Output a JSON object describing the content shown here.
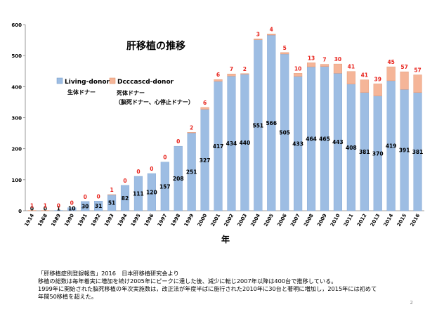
{
  "chart_data": {
    "type": "bar",
    "stacked": true,
    "title": "肝移植の推移",
    "xlabel": "年",
    "ylabel": "",
    "ylim": [
      0,
      600
    ],
    "yticks": [
      0,
      100,
      200,
      300,
      400,
      500,
      600
    ],
    "grid": false,
    "legend_position": "top-left",
    "categories": [
      "1914",
      "1968",
      "1989",
      "1990",
      "1991",
      "1992",
      "1993",
      "1994",
      "1995",
      "1996",
      "1997",
      "1998",
      "1999",
      "2000",
      "2001",
      "2002",
      "2003",
      "2004",
      "2005",
      "2006",
      "2007",
      "2008",
      "2009",
      "2010",
      "2011",
      "2012",
      "2013",
      "2014",
      "2015",
      "2016"
    ],
    "series": [
      {
        "name": "Living-donor",
        "sublabel": "生体ドナー",
        "color": "#9dbde3",
        "values": [
          0,
          0,
          1,
          10,
          30,
          31,
          51,
          82,
          111,
          120,
          157,
          208,
          251,
          327,
          417,
          434,
          440,
          551,
          566,
          505,
          433,
          464,
          465,
          443,
          408,
          381,
          370,
          419,
          391,
          381
        ]
      },
      {
        "name": "Dcccascd-donor",
        "sublabel_lines": [
          "死体ドナー",
          "（脳死ドナー、心停止ドナー）"
        ],
        "color": "#f5b598",
        "values": [
          1,
          1,
          0,
          0,
          0,
          0,
          1,
          0,
          0,
          0,
          0,
          0,
          2,
          6,
          6,
          7,
          2,
          3,
          4,
          5,
          10,
          13,
          7,
          30,
          41,
          41,
          39,
          45,
          57,
          57
        ]
      }
    ]
  },
  "colors": {
    "label_red": "#e8231c",
    "axis": "#7f7f7f"
  },
  "footer": {
    "line1": "「肝移植症例登録報告」2016　日本肝移植研究会より",
    "line2": "移植の総数は毎年着実に増加を続け2005年にピークに達した後、減少に転じ2007年以降は400台で推移している。",
    "line3": "1999年に開始された脳死移植の年次実施数は，改正法が年度半ばに施行された2010年に30台と著明に増加し，2015年には初めて",
    "line4": "年間50移植を超えた。"
  },
  "page_number": "2"
}
